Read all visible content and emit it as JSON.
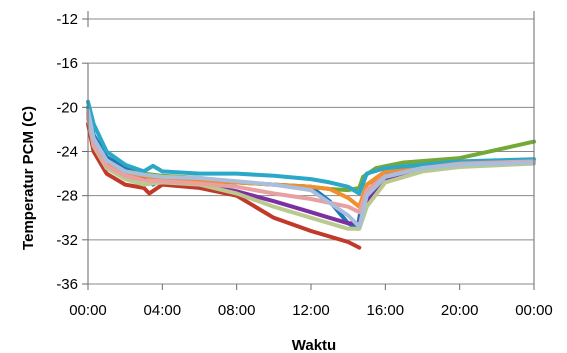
{
  "chart_data": {
    "type": "line",
    "title": "",
    "xlabel": "Waktu",
    "ylabel": "Temperatur PCM (C)",
    "ylim": [
      -36,
      -12
    ],
    "yticks": [
      -12,
      -16,
      -20,
      -24,
      -28,
      -32,
      -36
    ],
    "xticks": [
      "00:00",
      "04:00",
      "08:00",
      "12:00",
      "16:00",
      "20:00",
      "00:00"
    ],
    "xlim_hours": [
      0,
      24
    ],
    "grid": true,
    "legend": "none",
    "series": [
      {
        "color": "#c0392b",
        "x": [
          0,
          0.3,
          1,
          2,
          3,
          3.3,
          4,
          6,
          8,
          10,
          12,
          14,
          14.6
        ],
        "y": [
          -21.5,
          -24,
          -26,
          -27,
          -27.3,
          -27.8,
          -27,
          -27.3,
          -28,
          -30,
          -31.2,
          -32.2,
          -32.7
        ]
      },
      {
        "color": "#1f77b4",
        "x": [
          0,
          0.3,
          1,
          2,
          3,
          3.5,
          4,
          6,
          8,
          10,
          12,
          13,
          14,
          14.5,
          14.7,
          15.5,
          17,
          20,
          24
        ],
        "y": [
          -20,
          -22.5,
          -24.5,
          -25.5,
          -26,
          -27,
          -26.5,
          -26.7,
          -26.8,
          -27,
          -27.2,
          -28.5,
          -30.5,
          -31,
          -29,
          -26.5,
          -25.5,
          -25,
          -24.8
        ]
      },
      {
        "color": "#7b2fa0",
        "x": [
          0,
          0.3,
          1,
          2,
          3,
          4,
          6,
          8,
          10,
          12,
          13,
          14,
          14.6,
          15,
          16,
          18,
          20,
          24
        ],
        "y": [
          -20.5,
          -23,
          -25,
          -26,
          -26.4,
          -26.7,
          -27,
          -27.6,
          -28.5,
          -29.5,
          -30,
          -30.5,
          -30.5,
          -28.5,
          -26.5,
          -25.6,
          -25.2,
          -24.8
        ]
      },
      {
        "color": "#74a839",
        "x": [
          0,
          0.3,
          1,
          2,
          3,
          4,
          6,
          8,
          10,
          12,
          13,
          14,
          14.6,
          14.8,
          15.5,
          17,
          20,
          24
        ],
        "y": [
          -20,
          -23,
          -25,
          -25.8,
          -26,
          -26.2,
          -26.4,
          -26.8,
          -27,
          -27.2,
          -27.4,
          -27.5,
          -27.3,
          -26.3,
          -25.5,
          -25,
          -24.6,
          -23.1
        ]
      },
      {
        "color": "#f28e2b",
        "x": [
          0,
          0.3,
          1,
          2,
          3,
          4,
          6,
          8,
          10,
          12,
          13,
          14,
          14.6,
          15,
          16,
          18,
          20,
          24
        ],
        "y": [
          -20.5,
          -23,
          -25,
          -25.9,
          -26.2,
          -26.5,
          -26.6,
          -26.8,
          -27,
          -27.2,
          -27.4,
          -28.2,
          -29,
          -27,
          -25.8,
          -25.2,
          -25,
          -24.8
        ]
      },
      {
        "color": "#2ba7c8",
        "x": [
          0,
          0.3,
          1,
          2,
          3,
          3.5,
          4,
          6,
          8,
          10,
          12,
          13,
          14,
          14.6,
          15,
          16,
          18,
          20,
          24
        ],
        "y": [
          -19.5,
          -21.5,
          -24,
          -25.2,
          -25.8,
          -25.3,
          -25.8,
          -26,
          -26,
          -26.2,
          -26.5,
          -26.8,
          -27.2,
          -27.8,
          -26,
          -25.5,
          -25.2,
          -24.9,
          -24.7
        ]
      },
      {
        "color": "#b9c98f",
        "x": [
          0,
          0.3,
          1,
          2,
          3,
          4,
          6,
          8,
          10,
          12,
          13,
          14,
          14.6,
          15,
          16,
          18,
          20,
          24
        ],
        "y": [
          -21,
          -23.5,
          -25.5,
          -26.5,
          -27,
          -26.8,
          -27,
          -27.8,
          -29,
          -30,
          -30.5,
          -31,
          -31,
          -29,
          -26.8,
          -25.8,
          -25.4,
          -25.1
        ]
      },
      {
        "color": "#e8a0a0",
        "x": [
          0,
          0.3,
          1,
          2,
          3,
          4,
          6,
          8,
          10,
          12,
          14,
          14.6,
          15,
          16,
          18,
          20,
          24
        ],
        "y": [
          -20.8,
          -23.3,
          -25.3,
          -26.2,
          -26.6,
          -26.7,
          -26.9,
          -27.2,
          -27.8,
          -28.3,
          -29,
          -29.5,
          -27.5,
          -26.2,
          -25.5,
          -25.1,
          -24.9
        ]
      },
      {
        "color": "#a9bedc",
        "x": [
          0,
          0.3,
          1,
          2,
          3,
          4,
          6,
          8,
          10,
          12,
          14,
          14.6,
          15,
          16,
          18,
          20,
          24
        ],
        "y": [
          -20.3,
          -22.8,
          -24.8,
          -25.8,
          -26.1,
          -26.3,
          -26.4,
          -26.7,
          -27,
          -27.5,
          -29.8,
          -30.8,
          -28,
          -26.3,
          -25.5,
          -25.2,
          -25
        ]
      }
    ]
  }
}
